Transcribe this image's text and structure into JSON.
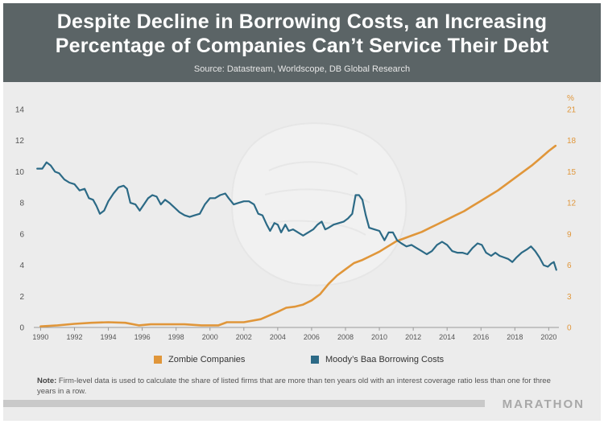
{
  "header": {
    "title_line1": "Despite Decline in Borrowing Costs, an Increasing",
    "title_line2": "Percentage of Companies Can’t Service Their Debt",
    "source": "Source: Datastream, Worldscope, DB Global Research"
  },
  "legend": {
    "zombie": "Zombie Companies",
    "moodys": "Moody’s Baa Borrowing Costs"
  },
  "note": {
    "label": "Note:",
    "text": " Firm-level data is used to calculate the share of listed firms that are more than ten years old with an interest coverage ratio less than one for three years in a row."
  },
  "brand": "MARATHON",
  "colors": {
    "zombie": "#e0963a",
    "moodys": "#2c6a86",
    "header": "#5b6466"
  },
  "chart_data": {
    "type": "line",
    "xlim": [
      1989.6,
      2020.6
    ],
    "y_left": {
      "ylim": [
        0,
        14
      ],
      "ticks": [
        "0",
        "2",
        "4",
        "6",
        "8",
        "10",
        "12",
        "14"
      ]
    },
    "y_right": {
      "unit": "%",
      "ylim": [
        0,
        21
      ],
      "ticks": [
        "0",
        "3",
        "6",
        "9",
        "12",
        "15",
        "18",
        "21"
      ]
    },
    "x_ticks": [
      "1990",
      "1992",
      "1994",
      "1996",
      "1998",
      "2000",
      "2002",
      "2004",
      "2006",
      "2008",
      "2010",
      "2012",
      "2014",
      "2016",
      "2018",
      "2020"
    ],
    "grid": false,
    "legend_position": "bottom",
    "series": [
      {
        "name": "Zombie Companies",
        "axis": "right",
        "points": [
          [
            1990.0,
            0.1
          ],
          [
            1991.0,
            0.2
          ],
          [
            1992.0,
            0.35
          ],
          [
            1993.0,
            0.45
          ],
          [
            1994.0,
            0.5
          ],
          [
            1995.0,
            0.45
          ],
          [
            1995.8,
            0.2
          ],
          [
            1996.5,
            0.3
          ],
          [
            1997.5,
            0.3
          ],
          [
            1998.5,
            0.3
          ],
          [
            1999.5,
            0.2
          ],
          [
            2000.5,
            0.2
          ],
          [
            2001.0,
            0.5
          ],
          [
            2002.0,
            0.5
          ],
          [
            2003.0,
            0.8
          ],
          [
            2004.0,
            1.5
          ],
          [
            2004.5,
            1.9
          ],
          [
            2005.0,
            2.0
          ],
          [
            2005.5,
            2.2
          ],
          [
            2006.0,
            2.6
          ],
          [
            2006.5,
            3.2
          ],
          [
            2007.0,
            4.2
          ],
          [
            2007.5,
            5.0
          ],
          [
            2008.0,
            5.6
          ],
          [
            2008.5,
            6.2
          ],
          [
            2009.0,
            6.5
          ],
          [
            2009.5,
            6.9
          ],
          [
            2010.0,
            7.3
          ],
          [
            2010.5,
            7.8
          ],
          [
            2011.0,
            8.3
          ],
          [
            2011.5,
            8.6
          ],
          [
            2012.0,
            8.9
          ],
          [
            2012.5,
            9.2
          ],
          [
            2013.0,
            9.6
          ],
          [
            2013.5,
            10.0
          ],
          [
            2014.0,
            10.4
          ],
          [
            2014.5,
            10.8
          ],
          [
            2015.0,
            11.2
          ],
          [
            2015.5,
            11.7
          ],
          [
            2016.0,
            12.2
          ],
          [
            2016.5,
            12.7
          ],
          [
            2017.0,
            13.2
          ],
          [
            2017.5,
            13.8
          ],
          [
            2018.0,
            14.4
          ],
          [
            2018.5,
            15.0
          ],
          [
            2019.0,
            15.6
          ],
          [
            2019.5,
            16.3
          ],
          [
            2020.0,
            17.0
          ],
          [
            2020.4,
            17.5
          ]
        ]
      },
      {
        "name": "Moody’s Baa Borrowing Costs",
        "axis": "left",
        "points": [
          [
            1989.8,
            10.2
          ],
          [
            1990.1,
            10.2
          ],
          [
            1990.35,
            10.6
          ],
          [
            1990.6,
            10.4
          ],
          [
            1990.85,
            10.0
          ],
          [
            1991.1,
            9.9
          ],
          [
            1991.4,
            9.5
          ],
          [
            1991.7,
            9.3
          ],
          [
            1992.0,
            9.2
          ],
          [
            1992.3,
            8.8
          ],
          [
            1992.6,
            8.9
          ],
          [
            1992.85,
            8.3
          ],
          [
            1993.1,
            8.2
          ],
          [
            1993.3,
            7.8
          ],
          [
            1993.5,
            7.3
          ],
          [
            1993.75,
            7.5
          ],
          [
            1994.0,
            8.1
          ],
          [
            1994.3,
            8.6
          ],
          [
            1994.6,
            9.0
          ],
          [
            1994.9,
            9.1
          ],
          [
            1995.1,
            8.9
          ],
          [
            1995.3,
            8.0
          ],
          [
            1995.6,
            7.9
          ],
          [
            1995.85,
            7.5
          ],
          [
            1996.1,
            7.9
          ],
          [
            1996.35,
            8.3
          ],
          [
            1996.6,
            8.5
          ],
          [
            1996.85,
            8.4
          ],
          [
            1997.1,
            7.9
          ],
          [
            1997.35,
            8.2
          ],
          [
            1997.6,
            8.0
          ],
          [
            1997.9,
            7.7
          ],
          [
            1998.2,
            7.4
          ],
          [
            1998.5,
            7.2
          ],
          [
            1998.8,
            7.1
          ],
          [
            1999.1,
            7.2
          ],
          [
            1999.4,
            7.3
          ],
          [
            1999.7,
            7.9
          ],
          [
            2000.0,
            8.3
          ],
          [
            2000.3,
            8.3
          ],
          [
            2000.6,
            8.5
          ],
          [
            2000.9,
            8.6
          ],
          [
            2001.1,
            8.3
          ],
          [
            2001.4,
            7.9
          ],
          [
            2001.7,
            8.0
          ],
          [
            2002.0,
            8.1
          ],
          [
            2002.3,
            8.1
          ],
          [
            2002.6,
            7.9
          ],
          [
            2002.85,
            7.3
          ],
          [
            2003.1,
            7.2
          ],
          [
            2003.35,
            6.6
          ],
          [
            2003.55,
            6.2
          ],
          [
            2003.8,
            6.7
          ],
          [
            2004.0,
            6.6
          ],
          [
            2004.2,
            6.1
          ],
          [
            2004.45,
            6.6
          ],
          [
            2004.65,
            6.2
          ],
          [
            2004.9,
            6.3
          ],
          [
            2005.2,
            6.1
          ],
          [
            2005.5,
            5.9
          ],
          [
            2005.8,
            6.1
          ],
          [
            2006.1,
            6.3
          ],
          [
            2006.35,
            6.6
          ],
          [
            2006.6,
            6.8
          ],
          [
            2006.8,
            6.3
          ],
          [
            2007.0,
            6.4
          ],
          [
            2007.3,
            6.6
          ],
          [
            2007.6,
            6.7
          ],
          [
            2007.9,
            6.8
          ],
          [
            2008.15,
            7.0
          ],
          [
            2008.4,
            7.3
          ],
          [
            2008.6,
            8.5
          ],
          [
            2008.8,
            8.5
          ],
          [
            2009.0,
            8.2
          ],
          [
            2009.2,
            7.2
          ],
          [
            2009.4,
            6.4
          ],
          [
            2009.7,
            6.3
          ],
          [
            2010.0,
            6.2
          ],
          [
            2010.3,
            5.6
          ],
          [
            2010.55,
            6.1
          ],
          [
            2010.8,
            6.1
          ],
          [
            2011.05,
            5.6
          ],
          [
            2011.3,
            5.4
          ],
          [
            2011.6,
            5.2
          ],
          [
            2011.9,
            5.3
          ],
          [
            2012.2,
            5.1
          ],
          [
            2012.5,
            4.9
          ],
          [
            2012.8,
            4.7
          ],
          [
            2013.1,
            4.9
          ],
          [
            2013.4,
            5.3
          ],
          [
            2013.7,
            5.5
          ],
          [
            2014.0,
            5.3
          ],
          [
            2014.3,
            4.9
          ],
          [
            2014.6,
            4.8
          ],
          [
            2014.9,
            4.8
          ],
          [
            2015.2,
            4.7
          ],
          [
            2015.5,
            5.1
          ],
          [
            2015.8,
            5.4
          ],
          [
            2016.05,
            5.3
          ],
          [
            2016.3,
            4.8
          ],
          [
            2016.6,
            4.6
          ],
          [
            2016.85,
            4.8
          ],
          [
            2017.1,
            4.6
          ],
          [
            2017.35,
            4.5
          ],
          [
            2017.6,
            4.4
          ],
          [
            2017.85,
            4.2
          ],
          [
            2018.1,
            4.5
          ],
          [
            2018.4,
            4.8
          ],
          [
            2018.7,
            5.0
          ],
          [
            2018.95,
            5.2
          ],
          [
            2019.2,
            4.9
          ],
          [
            2019.45,
            4.5
          ],
          [
            2019.7,
            4.0
          ],
          [
            2019.95,
            3.9
          ],
          [
            2020.15,
            4.1
          ],
          [
            2020.3,
            4.2
          ],
          [
            2020.45,
            3.7
          ]
        ]
      }
    ]
  }
}
